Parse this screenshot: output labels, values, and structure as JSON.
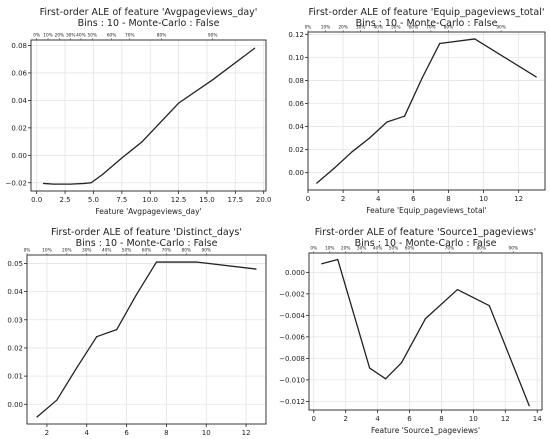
{
  "chart_data": [
    {
      "type": "line",
      "title": "First-order ALE of feature 'Avgpageviews_day'",
      "subtitle": "Bins : 10 - Monte-Carlo : False",
      "xlabel": "Feature 'Avgpageviews_day'",
      "ylabel": "",
      "xlim": [
        -0.5,
        20.2
      ],
      "ylim": [
        -0.026,
        0.084
      ],
      "xticks": [
        0,
        2.5,
        5.0,
        7.5,
        10.0,
        12.5,
        15.0,
        17.5,
        20.0
      ],
      "xtick_labels": [
        "0.0",
        "2.5",
        "5.0",
        "7.5",
        "10.0",
        "12.5",
        "15.0",
        "17.5",
        "20.0"
      ],
      "yticks": [
        -0.02,
        0.0,
        0.02,
        0.04,
        0.06,
        0.08
      ],
      "ytick_labels": [
        "−0.02",
        "0.00",
        "0.02",
        "0.04",
        "0.06",
        "0.08"
      ],
      "top_ticks": [
        0.0,
        1.0,
        2.0,
        3.0,
        3.9,
        4.9,
        6.6,
        8.2,
        11.0,
        15.5
      ],
      "top_tick_labels": [
        "0%",
        "10%",
        "20%",
        "30%",
        "40%",
        "50%",
        "60%",
        "70%",
        "80%",
        "90%"
      ],
      "grid": true,
      "line_color": "#222222",
      "x": [
        0.6,
        1.5,
        3.0,
        4.2,
        4.8,
        5.8,
        7.5,
        9.3,
        12.5,
        15.5,
        19.2
      ],
      "y": [
        -0.0205,
        -0.021,
        -0.021,
        -0.0205,
        -0.02,
        -0.014,
        -0.002,
        0.01,
        0.038,
        0.055,
        0.078
      ]
    },
    {
      "type": "line",
      "title": "First-order ALE of feature 'Equip_pageviews_total'",
      "subtitle": "Bins : 10 - Monte-Carlo : False",
      "xlabel": "Feature 'Equip_pageviews_total'",
      "ylabel": "",
      "xlim": [
        0.0,
        13.5
      ],
      "ylim": [
        -0.015,
        0.122
      ],
      "xticks": [
        0,
        2,
        4,
        6,
        8,
        10,
        12
      ],
      "xtick_labels": [
        "0",
        "2",
        "4",
        "6",
        "8",
        "10",
        "12"
      ],
      "yticks": [
        0.0,
        0.02,
        0.04,
        0.06,
        0.08,
        0.1,
        0.12
      ],
      "ytick_labels": [
        "0.00",
        "0.02",
        "0.04",
        "0.06",
        "0.08",
        "0.10",
        "0.12"
      ],
      "top_ticks": [
        0.0,
        1.0,
        2.0,
        3.0,
        4.0,
        5.0,
        6.0,
        7.0,
        8.0,
        11.0
      ],
      "top_tick_labels": [
        "0%",
        "10%",
        "20%",
        "30%",
        "40%",
        "50%",
        "60%",
        "70%",
        "80%",
        "90%"
      ],
      "grid": true,
      "line_color": "#222222",
      "x": [
        0.5,
        1.5,
        2.5,
        3.5,
        4.5,
        5.5,
        6.5,
        7.5,
        9.5,
        13.0
      ],
      "y": [
        -0.009,
        0.004,
        0.018,
        0.03,
        0.044,
        0.049,
        0.082,
        0.112,
        0.116,
        0.083
      ]
    },
    {
      "type": "line",
      "title": "First-order ALE of feature 'Distinct_days'",
      "subtitle": "Bins : 10 - Monte-Carlo : False",
      "xlabel": "Feature 'Distinct_days'",
      "ylabel": "",
      "xlim": [
        1.0,
        13.0
      ],
      "ylim": [
        -0.007,
        0.053
      ],
      "xticks": [
        2,
        4,
        6,
        8,
        10,
        12
      ],
      "xtick_labels": [
        "2",
        "4",
        "6",
        "8",
        "10",
        "12"
      ],
      "yticks": [
        0.0,
        0.01,
        0.02,
        0.03,
        0.04,
        0.05
      ],
      "ytick_labels": [
        "0.00",
        "0.01",
        "0.02",
        "0.03",
        "0.04",
        "0.05"
      ],
      "top_ticks": [
        1.0,
        2.0,
        3.0,
        4.0,
        5.0,
        6.0,
        7.0,
        8.0,
        9.0,
        10.0
      ],
      "top_tick_labels": [
        "0%",
        "10%",
        "20%",
        "30%",
        "40%",
        "50%",
        "60%",
        "70%",
        "80%",
        "90%"
      ],
      "grid": true,
      "line_color": "#222222",
      "x": [
        1.5,
        2.5,
        3.5,
        4.5,
        5.5,
        6.5,
        7.5,
        9.5,
        12.5
      ],
      "y": [
        -0.0045,
        0.0015,
        0.013,
        0.024,
        0.0265,
        0.039,
        0.0505,
        0.0505,
        0.048
      ]
    },
    {
      "type": "line",
      "title": "First-order ALE of feature 'Source1_pageviews'",
      "subtitle": "Bins : 10 - Monte-Carlo : False",
      "xlabel": "Feature 'Source1_pageviews'",
      "ylabel": "",
      "xlim": [
        -0.3,
        14.3
      ],
      "ylim": [
        -0.0128,
        0.0018
      ],
      "xticks": [
        0,
        2,
        4,
        6,
        8,
        10,
        12,
        14
      ],
      "xtick_labels": [
        "0",
        "2",
        "4",
        "6",
        "8",
        "10",
        "12",
        "14"
      ],
      "yticks": [
        0.0,
        -0.002,
        -0.004,
        -0.006,
        -0.008,
        -0.01,
        -0.012
      ],
      "ytick_labels": [
        "0.000",
        "−0.002",
        "−0.004",
        "−0.006",
        "−0.008",
        "−0.010",
        "−0.012"
      ],
      "top_ticks": [
        0.0,
        1.0,
        2.0,
        3.0,
        4.0,
        5.0,
        6.0,
        8.5,
        10.5,
        12.5
      ],
      "top_tick_labels": [
        "0%",
        "10%",
        "20%",
        "30%",
        "40%",
        "50%",
        "60%",
        "70%",
        "80%",
        "90%"
      ],
      "grid": true,
      "line_color": "#222222",
      "x": [
        0.5,
        1.5,
        3.5,
        4.5,
        5.5,
        7.0,
        9.0,
        11.0,
        13.5
      ],
      "y": [
        0.0008,
        0.0012,
        -0.0089,
        -0.0099,
        -0.0084,
        -0.0043,
        -0.0016,
        -0.0031,
        -0.0124
      ]
    }
  ]
}
